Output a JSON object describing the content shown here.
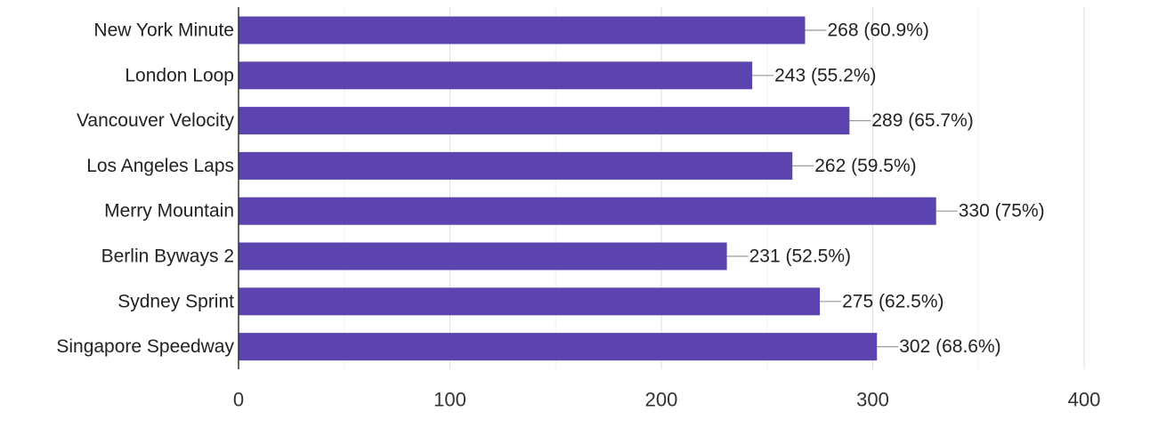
{
  "colors": {
    "bar": "#5c44b0",
    "grid_major": "#dedede",
    "grid_minor": "#f0f0f0",
    "axis": "#333333",
    "leader": "#999999",
    "label_text": "#222222",
    "tick_text": "#333333"
  },
  "chart_data": {
    "type": "bar",
    "orientation": "horizontal",
    "title": "",
    "xlabel": "",
    "ylabel": "",
    "categories": [
      "New York Minute",
      "London Loop",
      "Vancouver Velocity",
      "Los Angeles Laps",
      "Merry Mountain",
      "Berlin Byways 2",
      "Sydney Sprint",
      "Singapore Speedway"
    ],
    "values": [
      268,
      243,
      289,
      262,
      330,
      231,
      275,
      302
    ],
    "data_labels": [
      "268 (60.9%)",
      "243 (55.2%)",
      "289 (65.7%)",
      "262 (59.5%)",
      "330 (75%)",
      "231 (52.5%)",
      "275 (62.5%)",
      "302 (68.6%)"
    ],
    "xlim": [
      0,
      400
    ],
    "xticks": [
      0,
      100,
      200,
      300,
      400
    ],
    "xtick_labels": [
      "0",
      "100",
      "200",
      "300",
      "400"
    ],
    "minor_gridlines": [
      50,
      150,
      250,
      350
    ],
    "grid": true,
    "legend": "none"
  }
}
